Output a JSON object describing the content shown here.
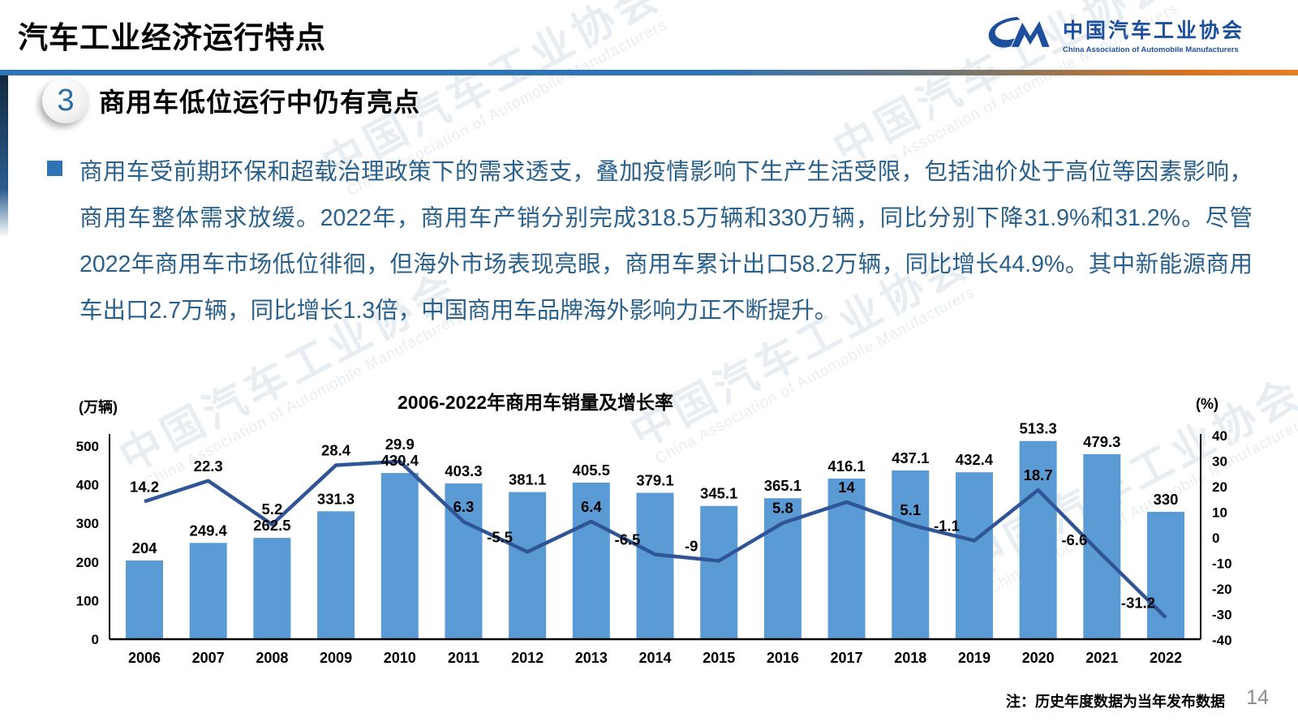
{
  "page": {
    "number": "14"
  },
  "header": {
    "title": "汽车工业经济运行特点",
    "logo_zh": "中国汽车工业协会",
    "logo_en": "China Association of Automobile Manufacturers"
  },
  "section": {
    "number": "3",
    "heading": "商用车低位运行中仍有亮点"
  },
  "body": {
    "paragraph": "商用车受前期环保和超载治理政策下的需求透支，叠加疫情影响下生产生活受限，包括油价处于高位等因素影响，商用车整体需求放缓。2022年，商用车产销分别完成318.5万辆和330万辆，同比分别下降31.9%和31.2%。尽管2022年商用车市场低位徘徊，但海外市场表现亮眼，商用车累计出口58.2万辆，同比增长44.9%。其中新能源商用车出口2.7万辆，同比增长1.3倍，中国商用车品牌海外影响力正不断提升。"
  },
  "chart_data": {
    "type": "bar",
    "subtype": "bar+line combo",
    "title": "2006-2022年商用车销量及增长率",
    "categories": [
      2006,
      2007,
      2008,
      2009,
      2010,
      2011,
      2012,
      2013,
      2014,
      2015,
      2016,
      2017,
      2018,
      2019,
      2020,
      2021,
      2022
    ],
    "series": [
      {
        "name": "商用车销量",
        "type": "bar",
        "unit": "万辆",
        "values": [
          204,
          249.4,
          262.5,
          331.3,
          430.4,
          403.3,
          381.1,
          405.5,
          379.1,
          345.1,
          365.1,
          416.1,
          437.1,
          432.4,
          513.3,
          479.3,
          330
        ]
      },
      {
        "name": "增长率",
        "type": "line",
        "unit": "%",
        "values": [
          14.2,
          22.3,
          5.2,
          28.4,
          29.9,
          6.3,
          -5.5,
          6.4,
          -6.5,
          -9,
          5.8,
          14,
          5.1,
          -1.1,
          18.7,
          -6.6,
          -31.2
        ]
      }
    ],
    "left_axis": {
      "label": "(万辆)",
      "min": 0,
      "max": 500,
      "step": 100
    },
    "right_axis": {
      "label": "(%)",
      "min": -40,
      "max": 40,
      "step": 10
    },
    "grid": "off",
    "legend": "none",
    "colors": {
      "bar": "#5b9bd5",
      "line": "#2f5597"
    }
  },
  "footnote": {
    "text": "注：历史年度数据为当年发布数据"
  },
  "watermark": {
    "text": "中国汽车工业协会",
    "subtext": "China Association of Automobile Manufacturers"
  }
}
